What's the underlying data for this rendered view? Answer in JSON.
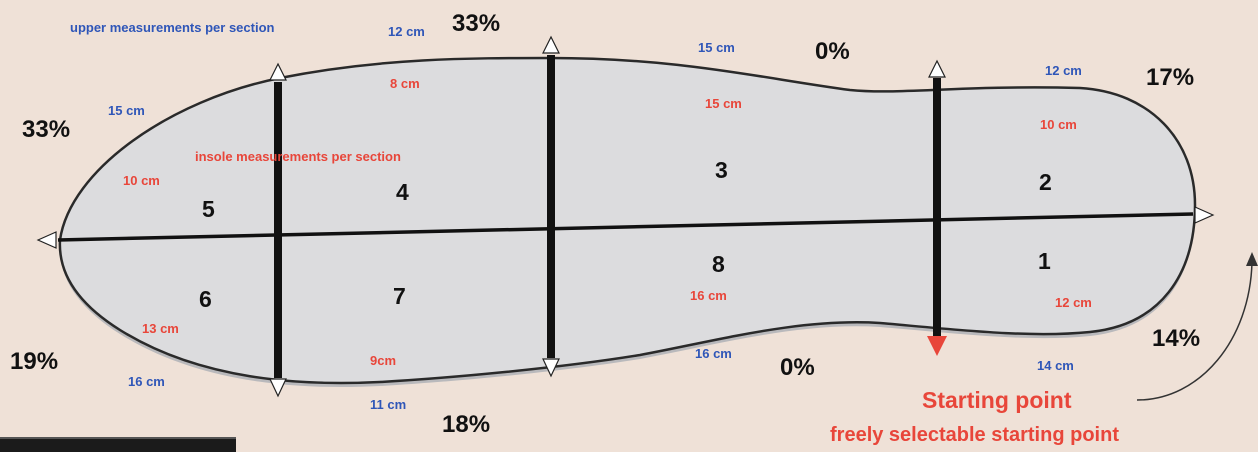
{
  "diagram": {
    "legend_upper": "upper measurements per section",
    "legend_insole": "insole measurements per section",
    "sections": [
      "1",
      "2",
      "3",
      "4",
      "5",
      "6",
      "7",
      "8"
    ],
    "percentages": {
      "top_left": "33%",
      "top_mid": "33%",
      "top_center": "0%",
      "top_right": "17%",
      "bottom_left": "19%",
      "bottom_mid": "18%",
      "bottom_center": "0%",
      "bottom_right": "14%"
    },
    "upper_measurements": {
      "s5_top": "15 cm",
      "s4_top": "12 cm",
      "s3_top": "15 cm",
      "s2_top": "12 cm",
      "s6_bottom": "16 cm",
      "s7_bottom": "11 cm",
      "s8_bottom": "16 cm",
      "s1_bottom": "14 cm"
    },
    "insole_measurements": {
      "s4": "8 cm",
      "s3": "15 cm",
      "s2": "10 cm",
      "s5": "10 cm",
      "s6": "13 cm",
      "s7": "9cm",
      "s8": "16 cm",
      "s1": "12 cm"
    },
    "starting_point": "Starting point",
    "starting_point_note": "freely selectable starting point",
    "colors": {
      "background": "#efe1d7",
      "outline_fill": "#dcdcde",
      "upper": "#2f56b8",
      "insole": "#e8463a"
    }
  }
}
